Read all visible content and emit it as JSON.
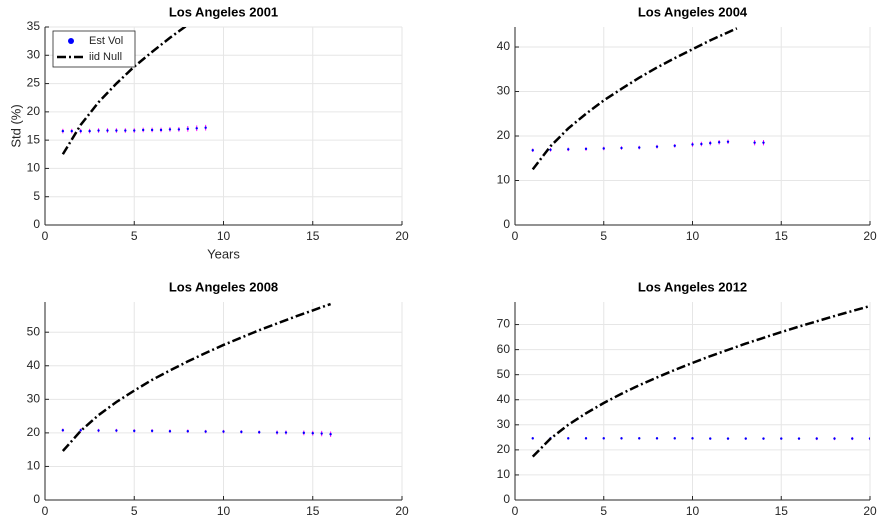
{
  "chart_data": [
    {
      "type": "line",
      "title": "Los Angeles 2001",
      "xlabel": "Years",
      "ylabel": "Std (%)",
      "xlim": [
        0,
        20
      ],
      "xticks": [
        0,
        5,
        10,
        15,
        20
      ],
      "ylim": [
        0,
        35
      ],
      "yticks": [
        0,
        5,
        10,
        15,
        20,
        25,
        30,
        35
      ],
      "grid": true,
      "legend": "northwest",
      "series": [
        {
          "name": "Est Vol",
          "style": "markers",
          "color": "#0000ff",
          "error_color": "#ff00ff",
          "x": [
            1,
            1.5,
            2,
            2.5,
            3,
            3.5,
            4,
            4.5,
            5,
            5.5,
            6,
            6.5,
            7,
            7.5,
            8,
            8.5,
            9
          ],
          "values": [
            16.6,
            16.6,
            16.6,
            16.6,
            16.7,
            16.7,
            16.7,
            16.7,
            16.7,
            16.8,
            16.8,
            16.8,
            16.9,
            16.9,
            17.0,
            17.1,
            17.2
          ],
          "errors": [
            0.4,
            0.4,
            0.4,
            0.4,
            0.4,
            0.4,
            0.4,
            0.4,
            0.4,
            0.4,
            0.4,
            0.4,
            0.4,
            0.4,
            0.5,
            0.5,
            0.5
          ]
        },
        {
          "name": "iid Null",
          "style": "dash-dot",
          "color": "#000000",
          "x": [
            1,
            2,
            3,
            4,
            5,
            6,
            7,
            8
          ],
          "values": [
            12.5,
            17.7,
            21.7,
            25.0,
            28.0,
            30.6,
            33.1,
            35.4
          ]
        }
      ]
    },
    {
      "type": "line",
      "title": "Los Angeles 2004",
      "xlim": [
        0,
        20
      ],
      "xticks": [
        0,
        5,
        10,
        15,
        20
      ],
      "ylim": [
        0,
        44.5
      ],
      "yticks": [
        0,
        10,
        20,
        30,
        40
      ],
      "grid": true,
      "series": [
        {
          "style": "markers",
          "color": "#0000ff",
          "error_color": "#ff00ff",
          "x": [
            1,
            2,
            3,
            4,
            5,
            6,
            7,
            8,
            9,
            10,
            10.5,
            11,
            11.5,
            12,
            13.5,
            14
          ],
          "values": [
            16.8,
            16.9,
            17.0,
            17.1,
            17.2,
            17.3,
            17.4,
            17.6,
            17.8,
            18.1,
            18.2,
            18.4,
            18.6,
            18.7,
            18.5,
            18.5
          ],
          "errors": [
            0.4,
            0.4,
            0.4,
            0.4,
            0.4,
            0.4,
            0.4,
            0.4,
            0.4,
            0.5,
            0.5,
            0.5,
            0.5,
            0.5,
            0.6,
            0.6
          ]
        },
        {
          "style": "dash-dot",
          "color": "#000000",
          "x": [
            1,
            2,
            3,
            4,
            5,
            6,
            7,
            8,
            9,
            10,
            11,
            12,
            12.5
          ],
          "values": [
            12.5,
            17.7,
            21.7,
            25.0,
            28.0,
            30.6,
            33.1,
            35.4,
            37.5,
            39.5,
            41.5,
            43.3,
            44.2
          ]
        }
      ]
    },
    {
      "type": "line",
      "title": "Los Angeles 2008",
      "xlim": [
        0,
        20
      ],
      "xticks": [
        0,
        5,
        10,
        15,
        20
      ],
      "ylim": [
        0,
        59
      ],
      "yticks": [
        0,
        10,
        20,
        30,
        40,
        50
      ],
      "grid": true,
      "series": [
        {
          "style": "markers",
          "color": "#0000ff",
          "error_color": "#ff00ff",
          "x": [
            1,
            2,
            3,
            4,
            5,
            6,
            7,
            8,
            9,
            10,
            11,
            12,
            13,
            13.5,
            14.5,
            15,
            15.5,
            16
          ],
          "values": [
            20.8,
            20.8,
            20.7,
            20.7,
            20.6,
            20.6,
            20.5,
            20.5,
            20.4,
            20.4,
            20.3,
            20.2,
            20.1,
            20.1,
            20.0,
            19.9,
            19.8,
            19.6
          ],
          "errors": [
            0.5,
            0.5,
            0.5,
            0.5,
            0.5,
            0.5,
            0.5,
            0.5,
            0.5,
            0.5,
            0.5,
            0.5,
            0.6,
            0.6,
            0.7,
            0.7,
            0.8,
            0.8
          ]
        },
        {
          "style": "dash-dot",
          "color": "#000000",
          "x": [
            1,
            2,
            3,
            4,
            5,
            6,
            7,
            8,
            9,
            10,
            11,
            12,
            13,
            14,
            15,
            16
          ],
          "values": [
            14.6,
            20.6,
            25.3,
            29.2,
            32.6,
            35.8,
            38.6,
            41.3,
            43.8,
            46.2,
            48.4,
            50.6,
            52.6,
            54.6,
            56.5,
            58.4
          ]
        }
      ]
    },
    {
      "type": "line",
      "title": "Los Angeles 2012",
      "xlim": [
        0,
        20
      ],
      "xticks": [
        0,
        5,
        10,
        15,
        20
      ],
      "ylim": [
        0,
        79
      ],
      "yticks": [
        0,
        10,
        20,
        30,
        40,
        50,
        60,
        70
      ],
      "grid": true,
      "series": [
        {
          "style": "markers",
          "color": "#0000ff",
          "error_color": "#ff00ff",
          "x": [
            1,
            2,
            3,
            4,
            5,
            6,
            7,
            8,
            9,
            10,
            11,
            12,
            13,
            14,
            15,
            16,
            17,
            18,
            19,
            20
          ],
          "values": [
            24.6,
            24.6,
            24.6,
            24.6,
            24.6,
            24.6,
            24.6,
            24.6,
            24.6,
            24.6,
            24.5,
            24.5,
            24.5,
            24.5,
            24.5,
            24.5,
            24.5,
            24.5,
            24.5,
            24.5
          ],
          "errors": [
            0.5,
            0.5,
            0.5,
            0.5,
            0.5,
            0.5,
            0.5,
            0.5,
            0.5,
            0.5,
            0.5,
            0.5,
            0.5,
            0.5,
            0.5,
            0.5,
            0.6,
            0.6,
            0.6,
            0.6
          ]
        },
        {
          "style": "dash-dot",
          "color": "#000000",
          "x": [
            1,
            2,
            3,
            4,
            5,
            6,
            7,
            8,
            9,
            10,
            11,
            12,
            13,
            14,
            15,
            16,
            17,
            18,
            19,
            20
          ],
          "values": [
            17.3,
            24.5,
            30.0,
            34.6,
            38.7,
            42.4,
            45.8,
            48.9,
            51.9,
            54.7,
            57.4,
            59.9,
            62.4,
            64.7,
            67.0,
            69.2,
            71.3,
            73.4,
            75.4,
            77.4
          ]
        }
      ]
    }
  ]
}
